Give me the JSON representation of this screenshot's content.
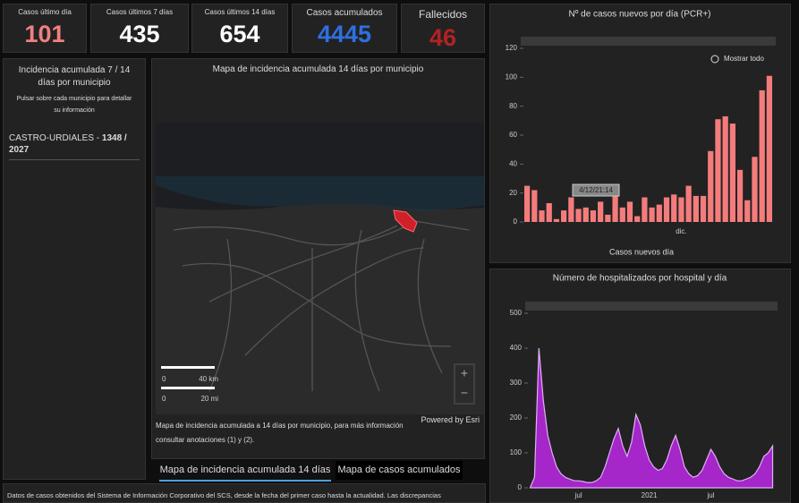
{
  "kpis": [
    {
      "label": "Casos último día",
      "value": 101,
      "color": "#f08080"
    },
    {
      "label": "Casos últimos 7 días",
      "value": 435,
      "color": "#ffffff"
    },
    {
      "label": "Casos últimos 14 días",
      "value": 654,
      "color": "#ffffff"
    },
    {
      "label": "Casos acumulados",
      "value": 4445,
      "color": "#2f6fe0"
    },
    {
      "label": "Fallecidos",
      "value": 46,
      "color": "#b22222"
    }
  ],
  "left_panel": {
    "title": "Incidencia acumulada 7 / 14 días por municipio",
    "hint": "Pulsar sobre cada municipio para detallar su información",
    "municipality": "CASTRO-URDIALES - ",
    "incidence": "1348 / 2027"
  },
  "map_panel": {
    "title": "Mapa de incidencia acumulada 14 días por municipio",
    "scale": [
      "0",
      "40 km",
      "0",
      "20 mi"
    ],
    "attribution": "Powered by Esri",
    "description": "Mapa de incidencia acumulada a 14 días por municipio, para más información consultar anotaciones (1) y (2).",
    "tabs": [
      "Mapa de incidencia acumulada 14 días",
      "Mapa de casos acumulados"
    ]
  },
  "footer": "Datos de casos obtenidos del Sistema de Información Corporativo del SCS, desde la fecha del primer caso hasta la actualidad. Las discrepancias",
  "chart_data": [
    {
      "type": "bar",
      "title": "Nº de casos nuevos por día (PCR+)",
      "zoom_label": "Mostrar todo",
      "annotation": "4/12/21:14",
      "categories": [
        null,
        null,
        null,
        null,
        null,
        null,
        null,
        null,
        null,
        null,
        null,
        null,
        null,
        null,
        null,
        null,
        null,
        null,
        null,
        null,
        null,
        "dic.",
        null,
        null,
        null,
        null,
        null,
        null,
        null,
        null,
        null,
        null,
        null,
        null
      ],
      "series": [
        {
          "name": "Casos nuevos día",
          "color": "#f47c7c",
          "values": [
            25,
            22,
            8,
            13,
            2,
            8,
            17,
            9,
            10,
            8,
            14,
            5,
            18,
            10,
            14,
            4,
            17,
            10,
            12,
            17,
            19,
            17,
            25,
            18,
            18,
            49,
            71,
            73,
            68,
            36,
            15,
            45,
            91,
            101
          ]
        }
      ],
      "ylim": [
        0,
        120
      ],
      "yticks": [
        0,
        20,
        40,
        60,
        80,
        100,
        120
      ],
      "grid": false
    },
    {
      "type": "area",
      "title": "Número de hospitalizados por hospital y día",
      "categories": [
        null,
        null,
        null,
        null,
        null,
        null,
        null,
        null,
        null,
        null,
        null,
        "jul",
        null,
        null,
        null,
        null,
        null,
        null,
        null,
        null,
        null,
        null,
        null,
        null,
        null,
        null,
        null,
        "2021",
        null,
        null,
        null,
        null,
        null,
        null,
        null,
        null,
        null,
        null,
        null,
        null,
        null,
        "jul",
        null,
        null,
        null,
        null,
        null,
        null,
        null,
        null,
        null,
        null,
        null,
        null,
        null,
        null
      ],
      "series": [
        {
          "name": null,
          "color": "#a526c9",
          "values": [
            0,
            30,
            400,
            250,
            150,
            100,
            60,
            40,
            30,
            25,
            20,
            20,
            18,
            15,
            15,
            20,
            30,
            60,
            100,
            140,
            170,
            120,
            90,
            130,
            210,
            180,
            120,
            80,
            60,
            50,
            55,
            80,
            120,
            150,
            110,
            60,
            40,
            30,
            35,
            50,
            80,
            110,
            90,
            60,
            40,
            30,
            25,
            20,
            20,
            25,
            30,
            40,
            60,
            90,
            100,
            120
          ]
        }
      ],
      "ylim": [
        0,
        500
      ],
      "yticks": [
        0,
        100,
        200,
        300,
        400,
        500
      ],
      "grid": false
    }
  ]
}
